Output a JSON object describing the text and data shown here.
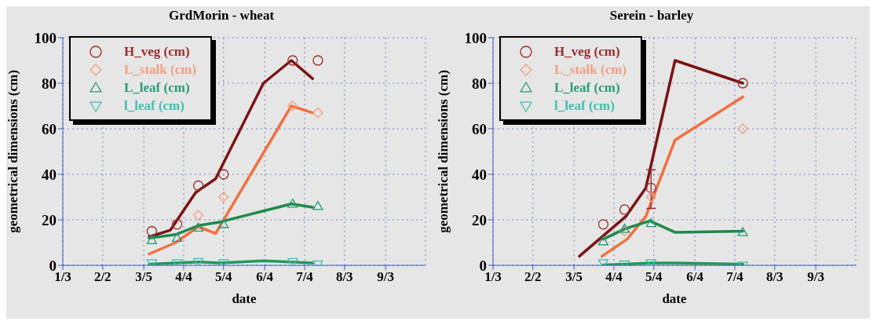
{
  "chart_data": [
    {
      "type": "line",
      "title": "GrdMorin - wheat",
      "xlabel": "date",
      "ylabel": "geometrical dimensions (cm)",
      "xlim": [
        "--01-03",
        "--10-03"
      ],
      "xticks": [
        {
          "value": "--01-03",
          "label": "1/3"
        },
        {
          "value": "--02-02",
          "label": "2/2"
        },
        {
          "value": "--03-05",
          "label": "3/5"
        },
        {
          "value": "--04-04",
          "label": "4/4"
        },
        {
          "value": "--05-04",
          "label": "5/4"
        },
        {
          "value": "--06-04",
          "label": "6/4"
        },
        {
          "value": "--07-04",
          "label": "7/4"
        },
        {
          "value": "--08-03",
          "label": "8/3"
        },
        {
          "value": "--09-03",
          "label": "9/3"
        }
      ],
      "ylim": [
        0,
        100
      ],
      "yticks": [
        0,
        20,
        40,
        60,
        80,
        100
      ],
      "grid": true,
      "legend": "top left",
      "line_style": "solid",
      "series": [
        {
          "color": "#7a1414",
          "marker": "none",
          "x": [
            "--03-09",
            "--03-25",
            "--04-13",
            "--04-28",
            "--06-03",
            "--06-24",
            "--07-10"
          ],
          "values": [
            12.5,
            15.5,
            32,
            38,
            80,
            90,
            82
          ]
        },
        {
          "color": "#f07040",
          "marker": "none",
          "x": [
            "--03-09",
            "--03-29",
            "--04-15",
            "--04-28",
            "--06-24",
            "--07-10"
          ],
          "values": [
            5,
            10,
            17,
            14,
            70,
            67
          ]
        },
        {
          "color": "#1e8a4a",
          "marker": "none",
          "x": [
            "--03-09",
            "--03-29",
            "--04-15",
            "--05-01",
            "--06-24",
            "--07-10"
          ],
          "values": [
            12,
            13.5,
            17.5,
            19,
            27,
            25.5
          ]
        },
        {
          "color": "#1e9a5a",
          "marker": "none",
          "x": [
            "--03-09",
            "--03-29",
            "--04-15",
            "--05-01",
            "--06-03",
            "--06-24",
            "--07-10"
          ],
          "values": [
            0.5,
            1,
            1.5,
            1,
            2,
            1.5,
            1
          ]
        },
        {
          "type": "scatter",
          "name": "H_veg (cm)",
          "color": "#9b2d2d",
          "marker": "circle",
          "x": [
            "--03-11",
            "--03-30",
            "--04-15",
            "--05-04",
            "--06-25",
            "--07-14"
          ],
          "values": [
            15,
            18,
            35,
            40,
            90,
            90
          ]
        },
        {
          "type": "scatter",
          "name": "L_stalk (cm)",
          "color": "#f0a080",
          "marker": "diamond",
          "x": [
            "--04-15",
            "--05-04",
            "--06-25",
            "--07-14"
          ],
          "values": [
            22,
            30,
            70,
            67
          ]
        },
        {
          "type": "scatter",
          "name": "L_leaf (cm)",
          "color": "#2a9a7a",
          "marker": "triangle",
          "x": [
            "--03-11",
            "--03-30",
            "--04-15",
            "--05-04",
            "--06-25",
            "--07-14"
          ],
          "values": [
            11,
            12,
            16.5,
            18,
            27,
            26
          ]
        },
        {
          "type": "scatter",
          "name": "l_leaf (cm)",
          "color": "#40c0b0",
          "marker": "triangle-down",
          "x": [
            "--03-11",
            "--03-30",
            "--04-15",
            "--05-04",
            "--06-25",
            "--07-14"
          ],
          "values": [
            1,
            1,
            1.5,
            1,
            1.5,
            0.5
          ]
        }
      ]
    },
    {
      "type": "line",
      "title": "Serein - barley",
      "xlabel": "date",
      "ylabel": "geometrical dimensions (cm)",
      "xlim": [
        "--01-03",
        "--10-03"
      ],
      "xticks": [
        {
          "value": "--01-03",
          "label": "1/3"
        },
        {
          "value": "--02-02",
          "label": "2/2"
        },
        {
          "value": "--03-05",
          "label": "3/5"
        },
        {
          "value": "--04-04",
          "label": "4/4"
        },
        {
          "value": "--05-04",
          "label": "5/4"
        },
        {
          "value": "--06-04",
          "label": "6/4"
        },
        {
          "value": "--07-04",
          "label": "7/4"
        },
        {
          "value": "--08-03",
          "label": "8/3"
        },
        {
          "value": "--09-03",
          "label": "9/3"
        }
      ],
      "ylim": [
        0,
        100
      ],
      "yticks": [
        0,
        20,
        40,
        60,
        80,
        100
      ],
      "grid": true,
      "legend": "top left",
      "line_style": "solid",
      "series": [
        {
          "color": "#7a1414",
          "marker": "none",
          "x": [
            "--03-09",
            "--04-13",
            "--04-28",
            "--05-20",
            "--07-10"
          ],
          "values": [
            4,
            21.5,
            34,
            90,
            80
          ]
        },
        {
          "color": "#f07040",
          "marker": "none",
          "x": [
            "--03-26",
            "--04-14",
            "--04-28",
            "--05-20",
            "--07-10"
          ],
          "values": [
            4,
            11.5,
            21.5,
            55,
            74
          ]
        },
        {
          "color": "#1e8a4a",
          "marker": "none",
          "x": [
            "--03-27",
            "--04-12",
            "--05-01",
            "--05-20",
            "--07-10"
          ],
          "values": [
            11.5,
            16,
            19.5,
            14.5,
            15
          ]
        },
        {
          "color": "#1e9a5a",
          "marker": "none",
          "x": [
            "--03-27",
            "--04-12",
            "--05-02",
            "--05-20",
            "--07-10"
          ],
          "values": [
            0.2,
            0.5,
            1,
            1,
            0.5
          ]
        },
        {
          "type": "scatter",
          "name": "H_veg (cm)",
          "color": "#9b2d2d",
          "marker": "circle",
          "x": [
            "--03-27",
            "--04-12",
            "--05-02",
            "--07-10"
          ],
          "values": [
            18,
            24.5,
            34,
            80
          ],
          "errors": [
            null,
            null,
            [
              25,
              42
            ],
            null
          ]
        },
        {
          "type": "scatter",
          "name": "L_stalk (cm)",
          "color": "#f0a080",
          "marker": "diamond",
          "x": [
            "--04-12",
            "--05-02",
            "--07-10"
          ],
          "values": [
            15,
            30,
            60
          ]
        },
        {
          "type": "scatter",
          "name": "L_leaf (cm)",
          "color": "#2a9a7a",
          "marker": "triangle",
          "x": [
            "--03-27",
            "--04-12",
            "--05-02",
            "--07-10"
          ],
          "values": [
            10.5,
            16,
            18.5,
            14.5
          ]
        },
        {
          "type": "scatter",
          "name": "l_leaf (cm)",
          "color": "#40c0b0",
          "marker": "triangle-down",
          "x": [
            "--03-27",
            "--04-12",
            "--05-02",
            "--07-10"
          ],
          "values": [
            1,
            0.5,
            1,
            0
          ]
        }
      ]
    }
  ]
}
